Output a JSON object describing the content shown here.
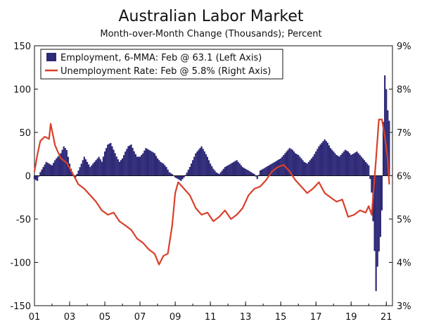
{
  "chart_data": {
    "type": "bar+line",
    "title": "Australian Labor Market",
    "subtitle": "Month-over-Month Change (Thousands); Percent",
    "x_tick_labels": [
      "01",
      "03",
      "05",
      "07",
      "09",
      "11",
      "13",
      "15",
      "17",
      "19",
      "21"
    ],
    "x_tick_years": [
      2001,
      2003,
      2005,
      2007,
      2009,
      2011,
      2013,
      2015,
      2017,
      2019,
      2021
    ],
    "x_range": [
      2001.0,
      2021.35
    ],
    "left_axis": {
      "ticks": [
        150,
        100,
        50,
        0,
        -50,
        -100,
        -150
      ],
      "ylim": [
        -150,
        150
      ]
    },
    "right_axis": {
      "ticks": [
        "9%",
        "8%",
        "7%",
        "6%",
        "5%",
        "4%",
        "3%"
      ],
      "values": [
        9,
        8,
        7,
        6,
        5,
        4,
        3
      ],
      "ylim": [
        3,
        9
      ]
    },
    "legend": {
      "position": "top-left",
      "items": [
        {
          "label": "Employment, 6-MMA: Feb @ 63.1 (Left Axis)",
          "color": "#2e2a77"
        },
        {
          "label": "Unemployment Rate: Feb @ 5.8% (Right Axis)",
          "color": "#d9402b"
        }
      ]
    },
    "series": [
      {
        "name": "Employment, 6-MMA: Feb @ 63.1 (Left Axis)",
        "axis": "left",
        "kind": "bar",
        "color": "#2e2a77",
        "points": [
          [
            2001.0,
            -4
          ],
          [
            2001.17,
            -6
          ],
          [
            2001.33,
            4
          ],
          [
            2001.5,
            10
          ],
          [
            2001.67,
            16
          ],
          [
            2001.83,
            14
          ],
          [
            2002.0,
            12
          ],
          [
            2002.17,
            18
          ],
          [
            2002.33,
            22
          ],
          [
            2002.5,
            26
          ],
          [
            2002.67,
            34
          ],
          [
            2002.83,
            30
          ],
          [
            2003.0,
            14
          ],
          [
            2003.17,
            2
          ],
          [
            2003.33,
            -2
          ],
          [
            2003.5,
            6
          ],
          [
            2003.67,
            14
          ],
          [
            2003.83,
            22
          ],
          [
            2004.0,
            16
          ],
          [
            2004.17,
            10
          ],
          [
            2004.33,
            14
          ],
          [
            2004.5,
            18
          ],
          [
            2004.67,
            22
          ],
          [
            2004.83,
            16
          ],
          [
            2005.0,
            28
          ],
          [
            2005.17,
            36
          ],
          [
            2005.33,
            38
          ],
          [
            2005.5,
            30
          ],
          [
            2005.67,
            22
          ],
          [
            2005.83,
            16
          ],
          [
            2006.0,
            20
          ],
          [
            2006.17,
            28
          ],
          [
            2006.33,
            34
          ],
          [
            2006.5,
            36
          ],
          [
            2006.67,
            28
          ],
          [
            2006.83,
            22
          ],
          [
            2007.0,
            22
          ],
          [
            2007.17,
            26
          ],
          [
            2007.33,
            32
          ],
          [
            2007.5,
            30
          ],
          [
            2007.67,
            28
          ],
          [
            2007.83,
            26
          ],
          [
            2008.0,
            20
          ],
          [
            2008.17,
            16
          ],
          [
            2008.33,
            14
          ],
          [
            2008.5,
            10
          ],
          [
            2008.67,
            4
          ],
          [
            2008.83,
            2
          ],
          [
            2009.0,
            -2
          ],
          [
            2009.17,
            -4
          ],
          [
            2009.33,
            -6
          ],
          [
            2009.5,
            -2
          ],
          [
            2009.67,
            4
          ],
          [
            2009.83,
            10
          ],
          [
            2010.0,
            18
          ],
          [
            2010.17,
            26
          ],
          [
            2010.33,
            30
          ],
          [
            2010.5,
            34
          ],
          [
            2010.67,
            28
          ],
          [
            2010.83,
            22
          ],
          [
            2011.0,
            14
          ],
          [
            2011.17,
            8
          ],
          [
            2011.33,
            4
          ],
          [
            2011.5,
            2
          ],
          [
            2011.67,
            6
          ],
          [
            2011.83,
            10
          ],
          [
            2012.0,
            12
          ],
          [
            2012.17,
            14
          ],
          [
            2012.33,
            16
          ],
          [
            2012.5,
            18
          ],
          [
            2012.67,
            14
          ],
          [
            2012.83,
            10
          ],
          [
            2013.0,
            8
          ],
          [
            2013.17,
            6
          ],
          [
            2013.33,
            4
          ],
          [
            2013.5,
            2
          ],
          [
            2013.67,
            -4
          ],
          [
            2013.83,
            6
          ],
          [
            2014.0,
            8
          ],
          [
            2014.17,
            10
          ],
          [
            2014.33,
            12
          ],
          [
            2014.5,
            14
          ],
          [
            2014.67,
            16
          ],
          [
            2014.83,
            18
          ],
          [
            2015.0,
            20
          ],
          [
            2015.17,
            24
          ],
          [
            2015.33,
            28
          ],
          [
            2015.5,
            32
          ],
          [
            2015.67,
            30
          ],
          [
            2015.83,
            26
          ],
          [
            2016.0,
            24
          ],
          [
            2016.17,
            20
          ],
          [
            2016.33,
            16
          ],
          [
            2016.5,
            14
          ],
          [
            2016.67,
            18
          ],
          [
            2016.83,
            22
          ],
          [
            2017.0,
            28
          ],
          [
            2017.17,
            34
          ],
          [
            2017.33,
            38
          ],
          [
            2017.5,
            42
          ],
          [
            2017.67,
            38
          ],
          [
            2017.83,
            32
          ],
          [
            2018.0,
            28
          ],
          [
            2018.17,
            24
          ],
          [
            2018.33,
            22
          ],
          [
            2018.5,
            26
          ],
          [
            2018.67,
            30
          ],
          [
            2018.83,
            28
          ],
          [
            2019.0,
            24
          ],
          [
            2019.17,
            26
          ],
          [
            2019.33,
            28
          ],
          [
            2019.5,
            24
          ],
          [
            2019.67,
            20
          ],
          [
            2019.83,
            16
          ],
          [
            2020.0,
            12
          ],
          [
            2020.17,
            -20
          ],
          [
            2020.33,
            -85
          ],
          [
            2020.42,
            -135
          ],
          [
            2020.5,
            -105
          ],
          [
            2020.58,
            -88
          ],
          [
            2020.67,
            -70
          ],
          [
            2020.75,
            -40
          ],
          [
            2020.83,
            60
          ],
          [
            2020.92,
            118
          ],
          [
            2021.0,
            100
          ],
          [
            2021.08,
            76
          ],
          [
            2021.17,
            63
          ]
        ]
      },
      {
        "name": "Unemployment Rate: Feb @ 5.8% (Right Axis)",
        "axis": "right",
        "kind": "line",
        "color": "#d9402b",
        "points": [
          [
            2001.0,
            6.1
          ],
          [
            2001.17,
            6.5
          ],
          [
            2001.33,
            6.8
          ],
          [
            2001.58,
            6.9
          ],
          [
            2001.83,
            6.85
          ],
          [
            2001.92,
            7.2
          ],
          [
            2002.17,
            6.7
          ],
          [
            2002.5,
            6.4
          ],
          [
            2002.83,
            6.3
          ],
          [
            2003.17,
            6.05
          ],
          [
            2003.5,
            5.8
          ],
          [
            2003.83,
            5.7
          ],
          [
            2004.17,
            5.55
          ],
          [
            2004.5,
            5.4
          ],
          [
            2004.83,
            5.2
          ],
          [
            2005.17,
            5.1
          ],
          [
            2005.5,
            5.15
          ],
          [
            2005.83,
            4.95
          ],
          [
            2006.17,
            4.85
          ],
          [
            2006.5,
            4.75
          ],
          [
            2006.83,
            4.55
          ],
          [
            2007.17,
            4.45
          ],
          [
            2007.5,
            4.3
          ],
          [
            2007.83,
            4.2
          ],
          [
            2008.08,
            3.95
          ],
          [
            2008.33,
            4.15
          ],
          [
            2008.58,
            4.2
          ],
          [
            2008.83,
            4.85
          ],
          [
            2009.0,
            5.6
          ],
          [
            2009.17,
            5.85
          ],
          [
            2009.5,
            5.7
          ],
          [
            2009.83,
            5.55
          ],
          [
            2010.17,
            5.25
          ],
          [
            2010.5,
            5.1
          ],
          [
            2010.83,
            5.15
          ],
          [
            2011.17,
            4.95
          ],
          [
            2011.5,
            5.05
          ],
          [
            2011.83,
            5.2
          ],
          [
            2012.17,
            5.0
          ],
          [
            2012.5,
            5.1
          ],
          [
            2012.83,
            5.25
          ],
          [
            2013.17,
            5.55
          ],
          [
            2013.5,
            5.7
          ],
          [
            2013.83,
            5.75
          ],
          [
            2014.17,
            5.9
          ],
          [
            2014.5,
            6.1
          ],
          [
            2014.83,
            6.2
          ],
          [
            2015.17,
            6.25
          ],
          [
            2015.5,
            6.1
          ],
          [
            2015.83,
            5.9
          ],
          [
            2016.17,
            5.75
          ],
          [
            2016.5,
            5.6
          ],
          [
            2016.83,
            5.7
          ],
          [
            2017.17,
            5.85
          ],
          [
            2017.5,
            5.6
          ],
          [
            2017.83,
            5.5
          ],
          [
            2018.17,
            5.4
          ],
          [
            2018.5,
            5.45
          ],
          [
            2018.83,
            5.05
          ],
          [
            2019.17,
            5.1
          ],
          [
            2019.5,
            5.2
          ],
          [
            2019.83,
            5.15
          ],
          [
            2020.0,
            5.3
          ],
          [
            2020.17,
            5.1
          ],
          [
            2020.42,
            6.4
          ],
          [
            2020.58,
            7.3
          ],
          [
            2020.75,
            7.3
          ],
          [
            2020.92,
            6.9
          ],
          [
            2021.08,
            6.4
          ],
          [
            2021.17,
            5.8
          ]
        ]
      }
    ]
  }
}
